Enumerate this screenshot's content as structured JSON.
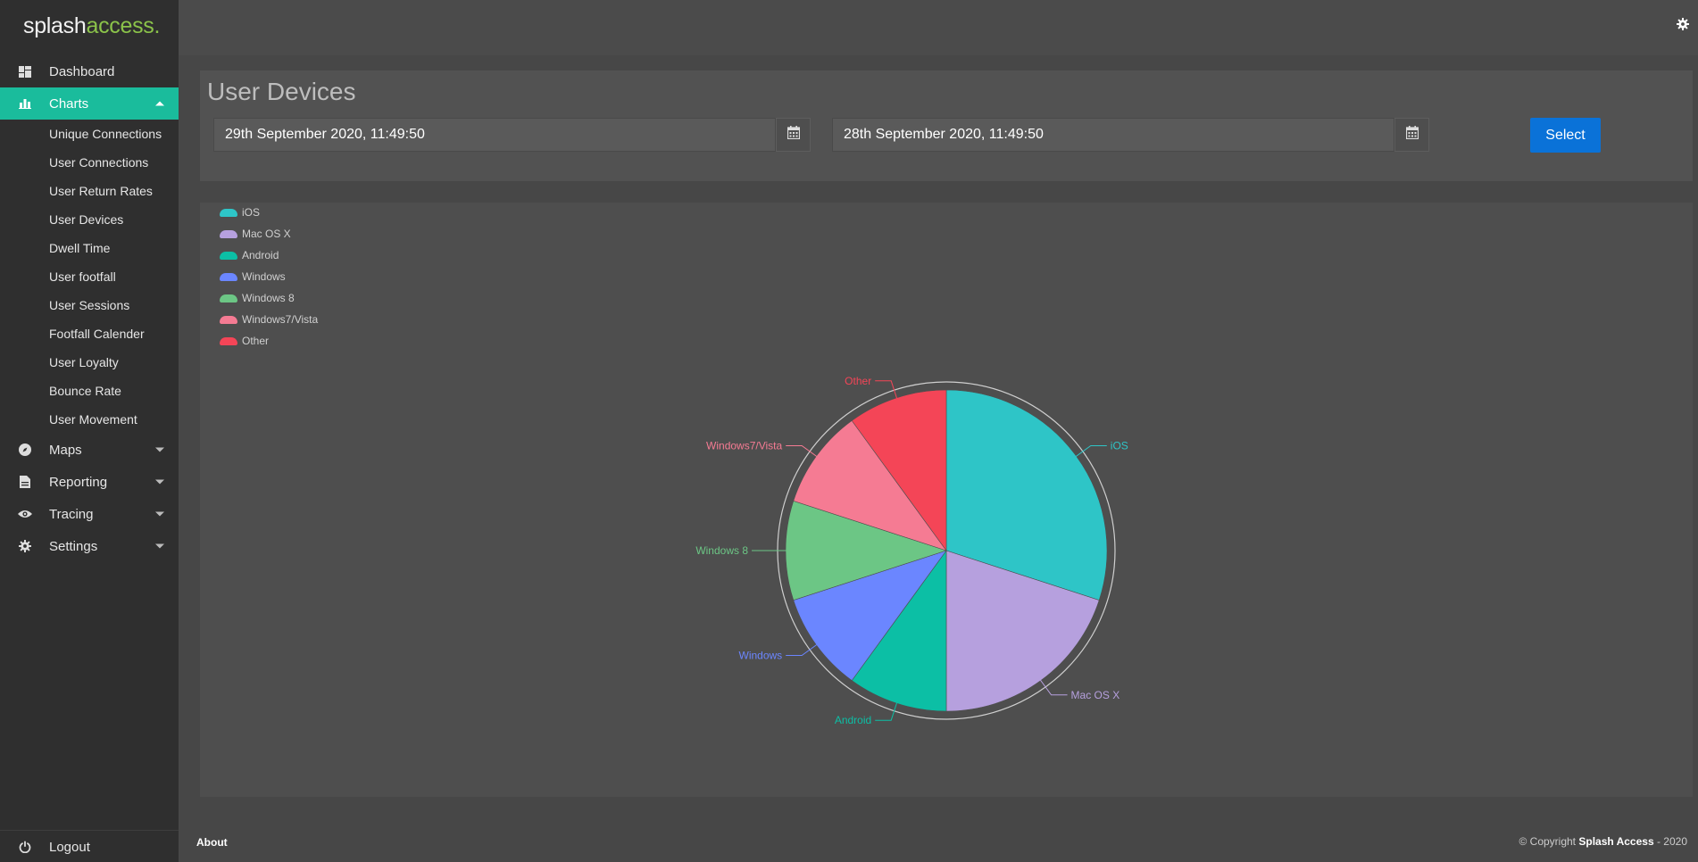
{
  "app": {
    "logo_main": "splash",
    "logo_accent": "access."
  },
  "sidebar": {
    "dashboard": "Dashboard",
    "charts": "Charts",
    "chart_items": [
      "Unique Connections",
      "User Connections",
      "User Return Rates",
      "User Devices",
      "Dwell Time",
      "User footfall",
      "User Sessions",
      "Footfall Calender",
      "User Loyalty",
      "Bounce Rate",
      "User Movement"
    ],
    "maps": "Maps",
    "reporting": "Reporting",
    "tracing": "Tracing",
    "settings": "Settings",
    "logout": "Logout"
  },
  "header": {
    "title": "User Devices",
    "start_date": "29th September 2020, 11:49:50",
    "end_date": "28th September 2020, 11:49:50",
    "select_label": "Select"
  },
  "chart_data": {
    "type": "pie",
    "categories": [
      "iOS",
      "Mac OS X",
      "Android",
      "Windows",
      "Windows 8",
      "Windows7/Vista",
      "Other"
    ],
    "values": [
      30,
      20,
      10,
      10,
      10,
      10,
      10
    ],
    "colors": [
      "#2ec5c7",
      "#b6a0de",
      "#0cbfa5",
      "#6b86ff",
      "#6cc685",
      "#f57b93",
      "#f44557"
    ],
    "legend_position": "top-left",
    "title": ""
  },
  "footer": {
    "about": "About",
    "copyright_prefix": "© Copyright ",
    "copyright_brand": "Splash Access",
    "copyright_suffix": " - 2020"
  }
}
